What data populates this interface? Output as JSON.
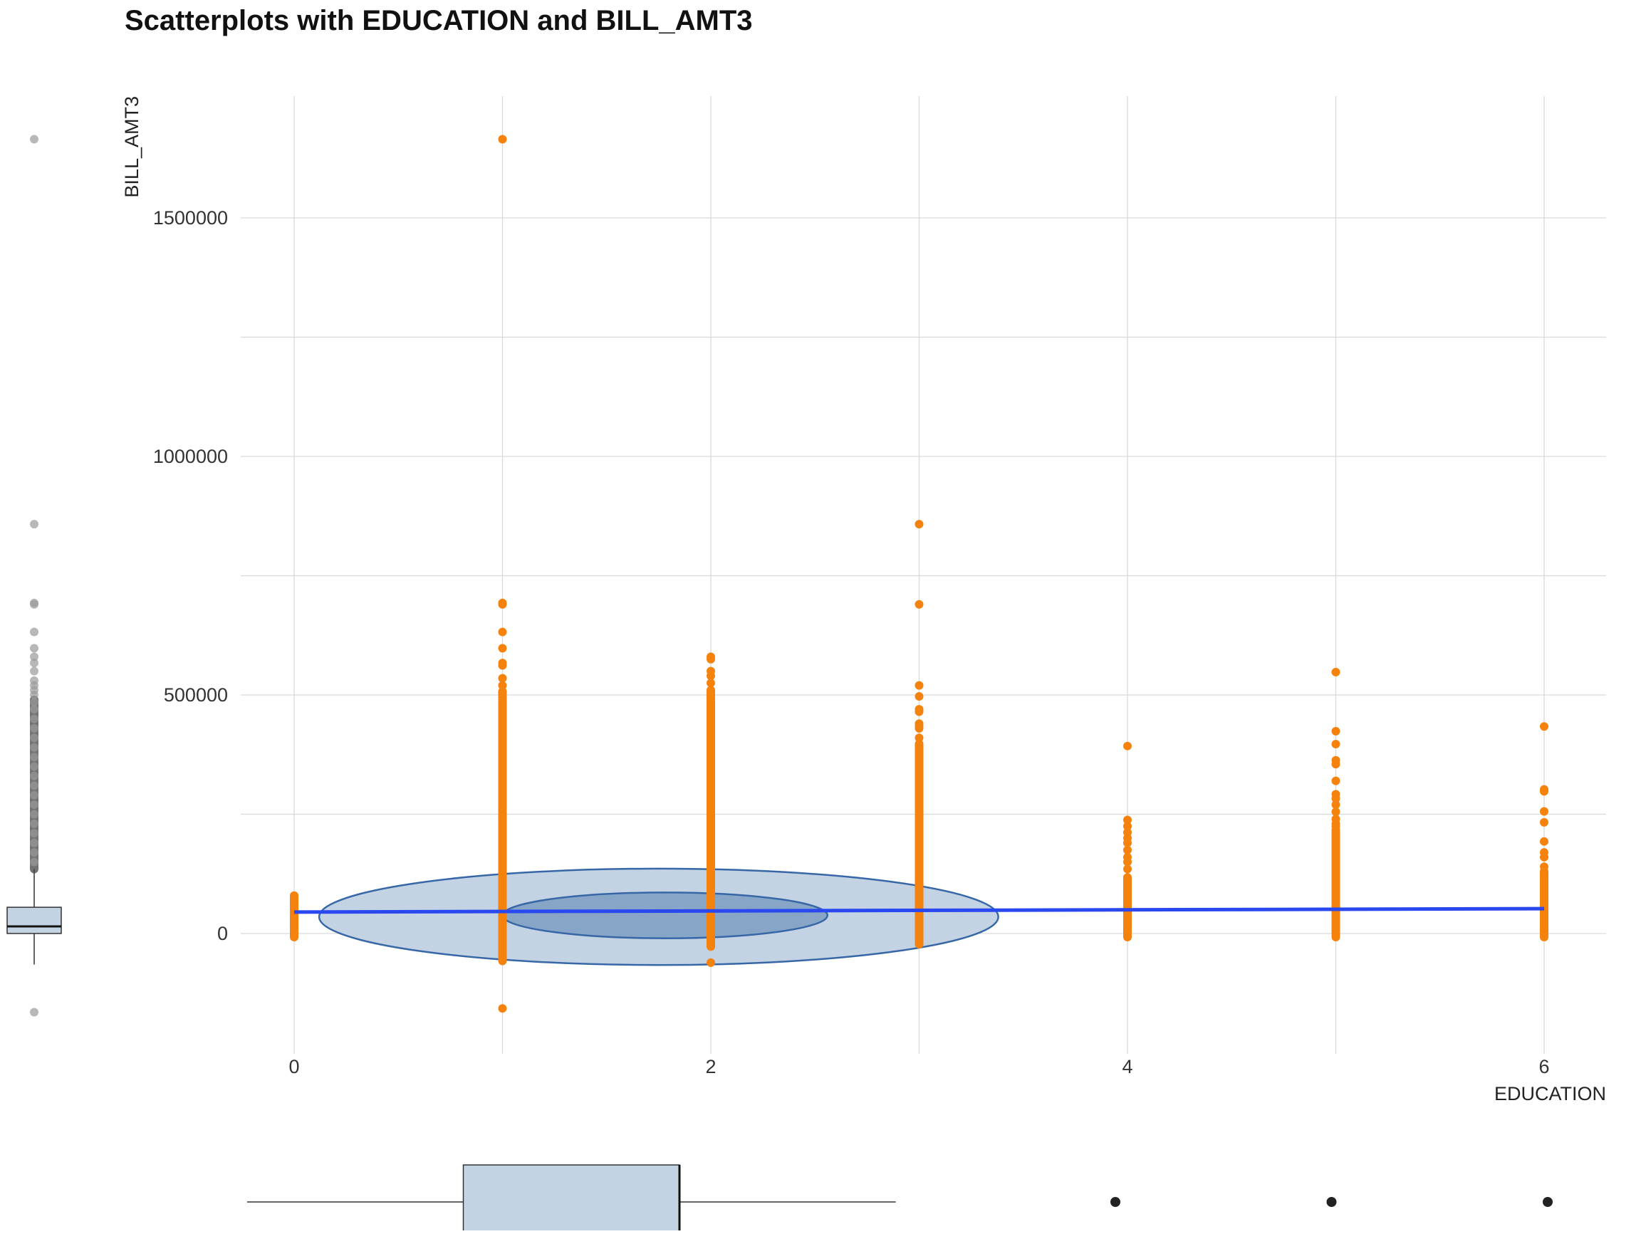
{
  "chart_data": {
    "type": "scatter",
    "title": "Scatterplots with EDUCATION and BILL_AMT3",
    "xlabel": "EDUCATION",
    "ylabel": "BILL_AMT3",
    "xlim": [
      -0.35,
      6.3
    ],
    "ylim": [
      -250000,
      1750000
    ],
    "x_ticks": [
      0,
      2,
      4,
      6
    ],
    "x_tick_labels": [
      "0",
      "2",
      "4",
      "6"
    ],
    "x_minor_gridlines": [
      1,
      3,
      5
    ],
    "y_ticks": [
      0,
      500000,
      1000000,
      1500000
    ],
    "y_tick_labels": [
      "0",
      "500000",
      "1000000",
      "1500000"
    ],
    "y_minor_gridlines": [
      250000,
      750000,
      1250000
    ],
    "grid": true,
    "colors": {
      "points": "#F5820D",
      "fit_line": "#2948F0",
      "ellipse_fill": "#C4D3E4",
      "ellipse_inner_fill": "#7C9EC2",
      "ellipse_stroke": "#3767A6",
      "box_fill": "#C4D3E4",
      "grid": "#D9D9D9",
      "marginal_outlier_y": "#9A9A9A",
      "marginal_outlier_x": "#222222"
    },
    "points_by_category": [
      {
        "x": 0,
        "range": [
          0,
          72000
        ],
        "outliers": [
          72000,
          65000,
          50000,
          22000,
          15000,
          5000,
          0
        ]
      },
      {
        "x": 1,
        "range": [
          -50000,
          500000
        ],
        "outliers": [
          1665000,
          693000,
          690000,
          632000,
          598000,
          567000,
          562000,
          535000,
          520000,
          -157000
        ]
      },
      {
        "x": 2,
        "range": [
          -20000,
          500000
        ],
        "outliers": [
          580000,
          575000,
          550000,
          540000,
          525000,
          510000,
          -61000
        ]
      },
      {
        "x": 3,
        "range": [
          -15000,
          390000
        ],
        "outliers": [
          858000,
          690000,
          520000,
          497000,
          470000,
          465000,
          440000,
          435000,
          430000,
          410000
        ]
      },
      {
        "x": 4,
        "range": [
          0,
          110000
        ],
        "outliers": [
          393000,
          238000,
          225000,
          212000,
          200000,
          190000,
          175000,
          160000,
          150000,
          135000
        ]
      },
      {
        "x": 5,
        "range": [
          0,
          210000
        ],
        "outliers": [
          548000,
          424000,
          397000,
          363000,
          355000,
          320000,
          292000,
          283000,
          270000,
          255000,
          240000,
          230000,
          225000
        ]
      },
      {
        "x": 6,
        "range": [
          0,
          120000
        ],
        "outliers": [
          434000,
          302000,
          298000,
          256000,
          233000,
          193000,
          170000,
          160000,
          140000,
          130000
        ]
      }
    ],
    "fit_line": {
      "x": [
        0,
        6
      ],
      "y": [
        45000,
        52000
      ]
    },
    "ellipses": [
      {
        "cx": 1.75,
        "cy": 35000,
        "rx": 1.63,
        "ry": 101000,
        "level": "outer"
      },
      {
        "cx": 1.78,
        "cy": 38000,
        "rx": 0.78,
        "ry": 48000,
        "level": "inner"
      }
    ],
    "marginal_y_boxplot": {
      "q1": 0,
      "median": 15000,
      "q3": 55000,
      "whisker_low": -65000,
      "whisker_high": 135000,
      "outliers": [
        1665000,
        858000,
        693000,
        690000,
        632000,
        598000,
        580000,
        567000,
        550000,
        530000,
        520000,
        510000,
        500000,
        485000,
        470000,
        450000,
        430000,
        410000,
        390000,
        370000,
        350000,
        330000,
        310000,
        290000,
        270000,
        250000,
        230000,
        210000,
        190000,
        170000,
        150000,
        -165000
      ]
    },
    "marginal_x_boxplot": {
      "q1": 1,
      "median": 2,
      "q3": 2,
      "whisker_low": 0,
      "whisker_high": 3,
      "outliers": [
        4,
        5,
        6
      ]
    }
  }
}
